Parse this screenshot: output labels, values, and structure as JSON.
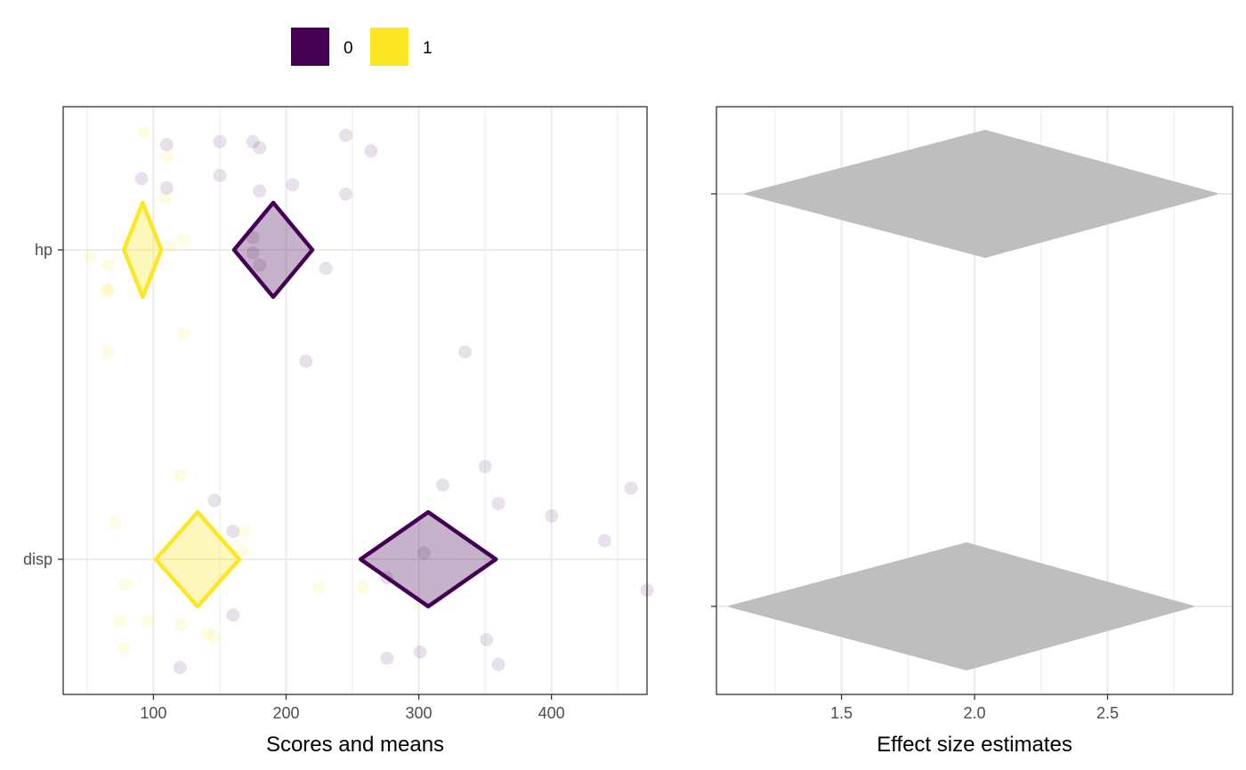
{
  "legend": {
    "position": "top",
    "items": [
      {
        "label": "0",
        "color": "#440154"
      },
      {
        "label": "1",
        "color": "#FDE725"
      }
    ]
  },
  "chart_data": [
    {
      "type": "scatter",
      "xlabel": "Scores and means",
      "ylabel": "",
      "xlim": [
        32,
        472
      ],
      "x_ticks": [
        100,
        200,
        300,
        400
      ],
      "y_categories": [
        "hp",
        "disp"
      ],
      "grid": true,
      "series": [
        {
          "name": "0",
          "color": "#440154",
          "points": {
            "hp": [
              {
                "x": 245,
                "y_offset": 0.37
              },
              {
                "x": 150,
                "y_offset": 0.35
              },
              {
                "x": 175,
                "y_offset": 0.35
              },
              {
                "x": 110,
                "y_offset": 0.34
              },
              {
                "x": 180,
                "y_offset": 0.33
              },
              {
                "x": 264,
                "y_offset": 0.32
              },
              {
                "x": 150,
                "y_offset": 0.24
              },
              {
                "x": 91,
                "y_offset": 0.23
              },
              {
                "x": 205,
                "y_offset": 0.21
              },
              {
                "x": 110,
                "y_offset": 0.2
              },
              {
                "x": 180,
                "y_offset": 0.19
              },
              {
                "x": 245,
                "y_offset": 0.18
              },
              {
                "x": 175,
                "y_offset": 0.04
              },
              {
                "x": 175,
                "y_offset": -0.01
              },
              {
                "x": 180,
                "y_offset": -0.05
              },
              {
                "x": 230,
                "y_offset": -0.06
              },
              {
                "x": 335,
                "y_offset": -0.33
              },
              {
                "x": 215,
                "y_offset": -0.36
              }
            ],
            "disp": [
              {
                "x": 350,
                "y_offset": 0.3
              },
              {
                "x": 460,
                "y_offset": 0.23
              },
              {
                "x": 318,
                "y_offset": 0.24
              },
              {
                "x": 146,
                "y_offset": 0.19
              },
              {
                "x": 360,
                "y_offset": 0.18
              },
              {
                "x": 400,
                "y_offset": 0.14
              },
              {
                "x": 160,
                "y_offset": 0.09
              },
              {
                "x": 440,
                "y_offset": 0.06
              },
              {
                "x": 304,
                "y_offset": 0.02
              },
              {
                "x": 276,
                "y_offset": -0.06
              },
              {
                "x": 472,
                "y_offset": -0.1
              },
              {
                "x": 160,
                "y_offset": -0.18
              },
              {
                "x": 351,
                "y_offset": -0.26
              },
              {
                "x": 301,
                "y_offset": -0.3
              },
              {
                "x": 276,
                "y_offset": -0.32
              },
              {
                "x": 360,
                "y_offset": -0.34
              },
              {
                "x": 120,
                "y_offset": -0.35
              }
            ]
          },
          "means": {
            "hp": 190.3,
            "disp": 307.1
          }
        },
        {
          "name": "1",
          "color": "#FDE725",
          "points": {
            "hp": [
              {
                "x": 93,
                "y_offset": 0.38
              },
              {
                "x": 110,
                "y_offset": 0.3
              },
              {
                "x": 109,
                "y_offset": 0.17
              },
              {
                "x": 123,
                "y_offset": 0.03
              },
              {
                "x": 113,
                "y_offset": 0.01
              },
              {
                "x": 52,
                "y_offset": -0.02
              },
              {
                "x": 66,
                "y_offset": -0.05
              },
              {
                "x": 65,
                "y_offset": -0.13
              },
              {
                "x": 66,
                "y_offset": -0.13
              },
              {
                "x": 123,
                "y_offset": -0.27
              },
              {
                "x": 66,
                "y_offset": -0.33
              }
            ],
            "disp": [
              {
                "x": 120,
                "y_offset": 0.27
              },
              {
                "x": 71,
                "y_offset": 0.12
              },
              {
                "x": 168,
                "y_offset": 0.09
              },
              {
                "x": 167,
                "y_offset": 0.03
              },
              {
                "x": 79,
                "y_offset": -0.08
              },
              {
                "x": 225,
                "y_offset": -0.09
              },
              {
                "x": 258,
                "y_offset": -0.09
              },
              {
                "x": 75,
                "y_offset": -0.2
              },
              {
                "x": 95,
                "y_offset": -0.2
              },
              {
                "x": 121,
                "y_offset": -0.21
              },
              {
                "x": 140,
                "y_offset": -0.24
              },
              {
                "x": 145,
                "y_offset": -0.25
              },
              {
                "x": 78,
                "y_offset": -0.29
              }
            ]
          },
          "means": {
            "hp": 91.9,
            "disp": 133.3
          }
        }
      ]
    },
    {
      "type": "scatter",
      "xlabel": "Effect size estimates",
      "ylabel": "",
      "xlim": [
        1.03,
        2.97
      ],
      "x_ticks": [
        1.5,
        2.0,
        2.5
      ],
      "x_tick_labels": [
        "1.5",
        "2.0",
        "2.5"
      ],
      "y_categories": [
        "hp",
        "disp"
      ],
      "y_ticks_labeled": false,
      "grid": true,
      "fill": "#BEBEBE",
      "estimates": [
        {
          "category": "hp",
          "estimate": 2.04,
          "lower": 1.14,
          "upper": 2.91
        },
        {
          "category": "disp",
          "estimate": 1.97,
          "lower": 1.08,
          "upper": 2.82
        }
      ]
    }
  ]
}
